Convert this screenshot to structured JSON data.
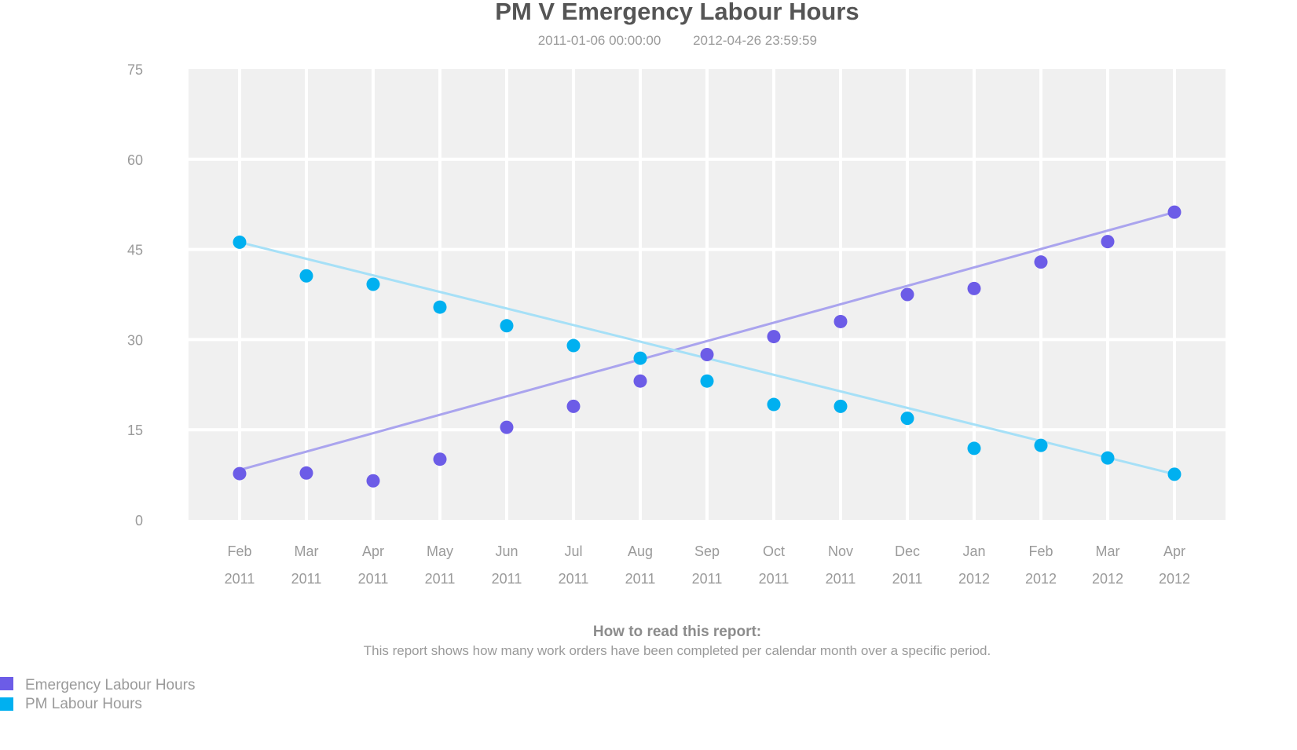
{
  "chart_data": {
    "type": "scatter",
    "title": "PM V Emergency Labour Hours",
    "subtitle": [
      "2011-01-06 00:00:00",
      "2012-04-26 23:59:59"
    ],
    "xlabel": "",
    "ylabel": "",
    "ylim": [
      0,
      75
    ],
    "y_ticks": [
      "0",
      "15",
      "30",
      "45",
      "60",
      "75"
    ],
    "grid": true,
    "categories": [
      {
        "month": "Feb",
        "year": "2011"
      },
      {
        "month": "Mar",
        "year": "2011"
      },
      {
        "month": "Apr",
        "year": "2011"
      },
      {
        "month": "May",
        "year": "2011"
      },
      {
        "month": "Jun",
        "year": "2011"
      },
      {
        "month": "Jul",
        "year": "2011"
      },
      {
        "month": "Aug",
        "year": "2011"
      },
      {
        "month": "Sep",
        "year": "2011"
      },
      {
        "month": "Oct",
        "year": "2011"
      },
      {
        "month": "Nov",
        "year": "2011"
      },
      {
        "month": "Dec",
        "year": "2011"
      },
      {
        "month": "Jan",
        "year": "2012"
      },
      {
        "month": "Feb",
        "year": "2012"
      },
      {
        "month": "Mar",
        "year": "2012"
      },
      {
        "month": "Apr",
        "year": "2012"
      }
    ],
    "series": [
      {
        "name": "Emergency Labour Hours",
        "color": "#6c5ce7",
        "trend_color": "#aaa4ee",
        "values": [
          7.7,
          7.8,
          6.5,
          10.1,
          15.4,
          18.9,
          23.1,
          27.5,
          30.5,
          33.0,
          37.5,
          38.5,
          42.9,
          46.3,
          51.2
        ],
        "trend": [
          8.3,
          51.2
        ]
      },
      {
        "name": "PM Labour Hours",
        "color": "#00b0f0",
        "trend_color": "#a6e0f7",
        "values": [
          46.2,
          40.6,
          39.2,
          35.4,
          32.3,
          29.0,
          26.9,
          23.1,
          19.2,
          18.9,
          16.9,
          11.9,
          12.4,
          10.3,
          7.6
        ],
        "trend": [
          46.2,
          7.6
        ]
      }
    ],
    "legend_position": "bottom-left"
  },
  "note": {
    "heading": "How to read this report:",
    "body": "This report shows how many work orders have been completed per calendar month over a specific period."
  }
}
